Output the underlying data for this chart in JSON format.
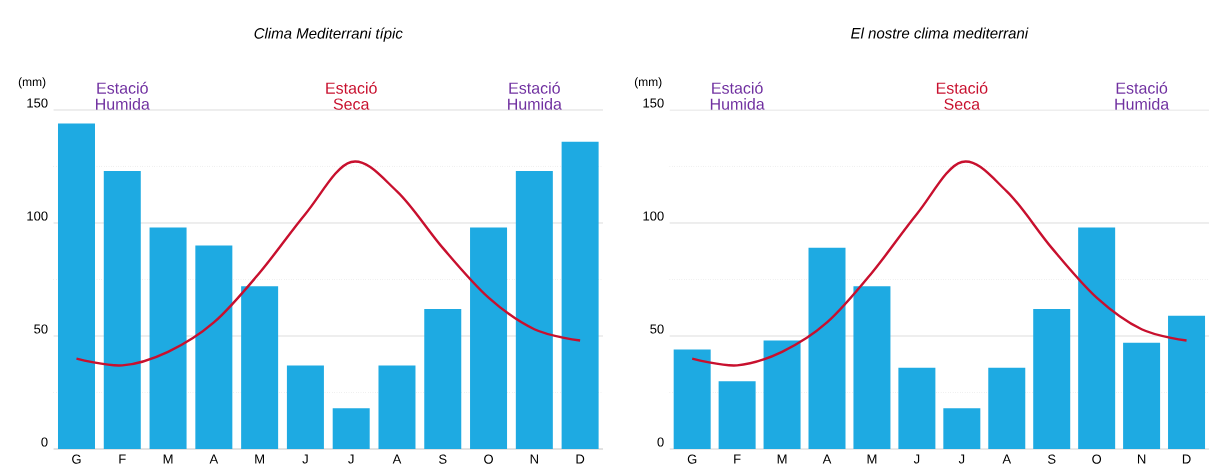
{
  "chart_data": [
    {
      "type": "bar",
      "title": "Clima Mediterrani típic",
      "ylabel": "(mm)",
      "categories": [
        "G",
        "F",
        "M",
        "A",
        "M",
        "J",
        "J",
        "A",
        "S",
        "O",
        "N",
        "D"
      ],
      "series": [
        {
          "color": "#1eaae2",
          "values": [
            144,
            123,
            98,
            90,
            72,
            37,
            18,
            37,
            62,
            98,
            123,
            136
          ]
        },
        {
          "type": "line",
          "color": "#c8102e",
          "values": [
            40,
            37,
            43,
            56,
            78,
            104,
            127,
            114,
            89,
            67,
            53,
            48
          ]
        }
      ],
      "ylim": [
        0,
        150
      ],
      "yticks": [
        0,
        50,
        100,
        150
      ],
      "grid": "y",
      "annotations": [
        "Estació Humida",
        "Estació Seca",
        "Estació Humida"
      ]
    },
    {
      "type": "bar",
      "title": "El nostre clima mediterrani",
      "ylabel": "(mm)",
      "categories": [
        "G",
        "F",
        "M",
        "A",
        "M",
        "J",
        "J",
        "A",
        "S",
        "O",
        "N",
        "D"
      ],
      "series": [
        {
          "color": "#1eaae2",
          "values": [
            44,
            30,
            48,
            89,
            72,
            36,
            18,
            36,
            62,
            98,
            47,
            59
          ]
        },
        {
          "type": "line",
          "color": "#c8102e",
          "values": [
            40,
            37,
            43,
            56,
            78,
            104,
            127,
            114,
            89,
            67,
            53,
            48
          ]
        }
      ],
      "ylim": [
        0,
        150
      ],
      "yticks": [
        0,
        50,
        100,
        150
      ],
      "grid": "y",
      "annotations": [
        "Estació Humida",
        "Estació Seca",
        "Estació Humida"
      ]
    }
  ]
}
